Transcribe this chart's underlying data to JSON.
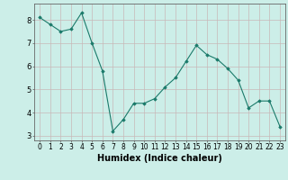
{
  "x": [
    0,
    1,
    2,
    3,
    4,
    5,
    6,
    7,
    8,
    9,
    10,
    11,
    12,
    13,
    14,
    15,
    16,
    17,
    18,
    19,
    20,
    21,
    22,
    23
  ],
  "y": [
    8.1,
    7.8,
    7.5,
    7.6,
    8.3,
    7.0,
    5.8,
    3.2,
    3.7,
    4.4,
    4.4,
    4.6,
    5.1,
    5.5,
    6.2,
    6.9,
    6.5,
    6.3,
    5.9,
    5.4,
    4.2,
    4.5,
    4.5,
    3.4
  ],
  "xlabel": "Humidex (Indice chaleur)",
  "ylim": [
    2.8,
    8.7
  ],
  "xlim": [
    -0.5,
    23.5
  ],
  "line_color": "#1a7a6a",
  "marker_color": "#1a7a6a",
  "bg_color": "#cceee8",
  "grid_color": "#c8b8b8",
  "tick_labels": [
    "0",
    "1",
    "2",
    "3",
    "4",
    "5",
    "6",
    "7",
    "8",
    "9",
    "10",
    "11",
    "12",
    "13",
    "14",
    "15",
    "16",
    "17",
    "18",
    "19",
    "20",
    "21",
    "22",
    "23"
  ],
  "yticks": [
    3,
    4,
    5,
    6,
    7,
    8
  ],
  "xlabel_fontsize": 7,
  "tick_fontsize": 5.5
}
